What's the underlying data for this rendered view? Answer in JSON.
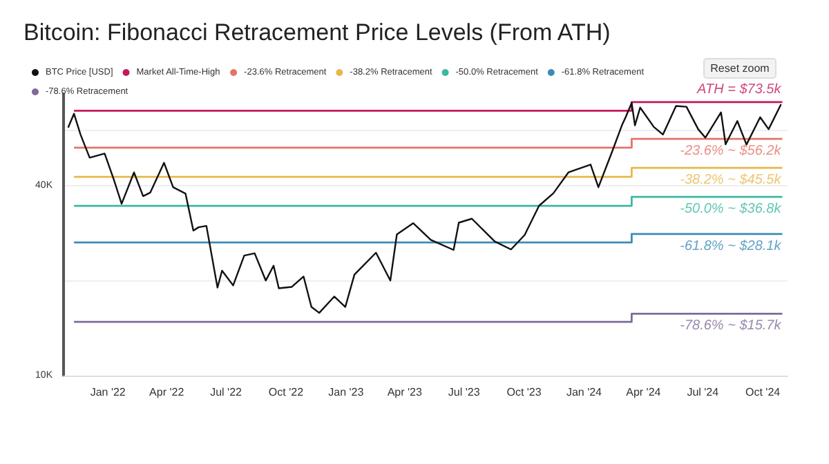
{
  "chart_data": {
    "type": "line",
    "title": "Bitcoin: Fibonacci Retracement Price Levels (From ATH)",
    "series": [
      {
        "name": "BTC Price [USD]",
        "color": "#111111",
        "x": [
          "2021-11-01",
          "2021-11-10",
          "2021-11-20",
          "2021-12-04",
          "2021-12-27",
          "2022-01-10",
          "2022-01-22",
          "2022-02-10",
          "2022-02-24",
          "2022-03-07",
          "2022-03-28",
          "2022-04-11",
          "2022-04-30",
          "2022-05-12",
          "2022-05-20",
          "2022-06-01",
          "2022-06-18",
          "2022-06-25",
          "2022-07-12",
          "2022-07-29",
          "2022-08-14",
          "2022-08-31",
          "2022-09-12",
          "2022-09-20",
          "2022-10-10",
          "2022-10-28",
          "2022-11-09",
          "2022-11-21",
          "2022-12-14",
          "2022-12-31",
          "2023-01-14",
          "2023-02-16",
          "2023-03-10",
          "2023-03-20",
          "2023-04-14",
          "2023-05-11",
          "2023-06-15",
          "2023-06-23",
          "2023-07-13",
          "2023-08-17",
          "2023-09-11",
          "2023-10-02",
          "2023-10-24",
          "2023-11-15",
          "2023-12-08",
          "2024-01-11",
          "2024-01-23",
          "2024-02-14",
          "2024-02-28",
          "2024-03-05",
          "2024-03-14",
          "2024-03-19",
          "2024-03-27",
          "2024-04-17",
          "2024-05-01",
          "2024-05-21",
          "2024-06-06",
          "2024-06-24",
          "2024-07-05",
          "2024-07-29",
          "2024-08-05",
          "2024-08-23",
          "2024-09-06",
          "2024-09-27",
          "2024-10-10",
          "2024-10-29"
        ],
        "values": [
          61000,
          67500,
          58000,
          49000,
          50500,
          41800,
          35000,
          44000,
          37000,
          38000,
          47200,
          39500,
          37700,
          28800,
          29500,
          29800,
          19000,
          21500,
          19300,
          24000,
          24400,
          20000,
          22300,
          18900,
          19100,
          20600,
          16500,
          15800,
          17800,
          16500,
          20900,
          24500,
          20000,
          28000,
          30400,
          26900,
          25000,
          30500,
          31400,
          26600,
          25100,
          27900,
          34500,
          37800,
          44000,
          46600,
          39500,
          51800,
          62000,
          66000,
          73100,
          62000,
          70600,
          61300,
          58000,
          71400,
          71000,
          60300,
          56700,
          68200,
          54000,
          64000,
          53900,
          65800,
          60300,
          72300
        ]
      },
      {
        "name": "Market All-Time-High",
        "color": "#c2185b",
        "type": "step",
        "x": [
          "2021-11-10",
          "2024-03-14",
          "2024-10-31"
        ],
        "values": [
          69000,
          73500,
          73500
        ]
      },
      {
        "name": "-23.6% Retracement",
        "color": "#e57368",
        "type": "step",
        "x": [
          "2021-11-10",
          "2024-03-14",
          "2024-10-31"
        ],
        "values": [
          52700,
          56200,
          56200
        ]
      },
      {
        "name": "-38.2% Retracement",
        "color": "#e8b74a",
        "type": "step",
        "x": [
          "2021-11-10",
          "2024-03-14",
          "2024-10-31"
        ],
        "values": [
          42600,
          45500,
          45500
        ]
      },
      {
        "name": "-50.0% Retracement",
        "color": "#3bb8a0",
        "type": "step",
        "x": [
          "2021-11-10",
          "2024-03-14",
          "2024-10-31"
        ],
        "values": [
          34500,
          36800,
          36800
        ]
      },
      {
        "name": "-61.8% Retracement",
        "color": "#3a8cb5",
        "type": "step",
        "x": [
          "2021-11-10",
          "2024-03-14",
          "2024-10-31"
        ],
        "values": [
          26400,
          28100,
          28100
        ]
      },
      {
        "name": "-78.6% Retracement",
        "color": "#7d6b99",
        "type": "step",
        "x": [
          "2021-11-10",
          "2024-03-14",
          "2024-10-31"
        ],
        "values": [
          14800,
          15700,
          15700
        ]
      }
    ],
    "annotations": [
      {
        "text": "ATH = $73.5k",
        "x": "2024-10-31",
        "y": 73500
      },
      {
        "text": "-23.6% ~ $56.2k",
        "x": "2024-10-31",
        "y": 56200
      },
      {
        "text": "-38.2% ~ $45.5k",
        "x": "2024-10-31",
        "y": 45500
      },
      {
        "text": "-50.0% ~ $36.8k",
        "x": "2024-10-31",
        "y": 36800
      },
      {
        "text": "-61.8% ~ $28.1k",
        "x": "2024-10-31",
        "y": 28100
      },
      {
        "text": "-78.6% ~ $15.7k",
        "x": "2024-10-31",
        "y": 15700
      },
      "Reset zoom"
    ],
    "xlim": [
      "2021-10-25",
      "2024-11-08"
    ],
    "xticks": [
      {
        "value": "2022-01-01",
        "label": "Jan '22"
      },
      {
        "value": "2022-04-01",
        "label": "Apr '22"
      },
      {
        "value": "2022-07-01",
        "label": "Jul '22"
      },
      {
        "value": "2022-10-01",
        "label": "Oct '22"
      },
      {
        "value": "2023-01-01",
        "label": "Jan '23"
      },
      {
        "value": "2023-04-01",
        "label": "Apr '23"
      },
      {
        "value": "2023-07-01",
        "label": "Jul '23"
      },
      {
        "value": "2023-10-01",
        "label": "Oct '23"
      },
      {
        "value": "2024-01-01",
        "label": "Jan '24"
      },
      {
        "value": "2024-04-01",
        "label": "Apr '24"
      },
      {
        "value": "2024-07-01",
        "label": "Jul '24"
      },
      {
        "value": "2024-10-01",
        "label": "Oct '24"
      }
    ],
    "ylim": [
      10000,
      78000
    ],
    "yticks": [
      {
        "value": 10000,
        "label": "10K"
      },
      {
        "value": 20000,
        "label": null
      },
      {
        "value": 40000,
        "label": "40K"
      },
      {
        "value": 60000,
        "label": null
      }
    ],
    "log": "y",
    "grid": "y",
    "legend": "top left",
    "marker": "none",
    "line_style": "solid"
  }
}
